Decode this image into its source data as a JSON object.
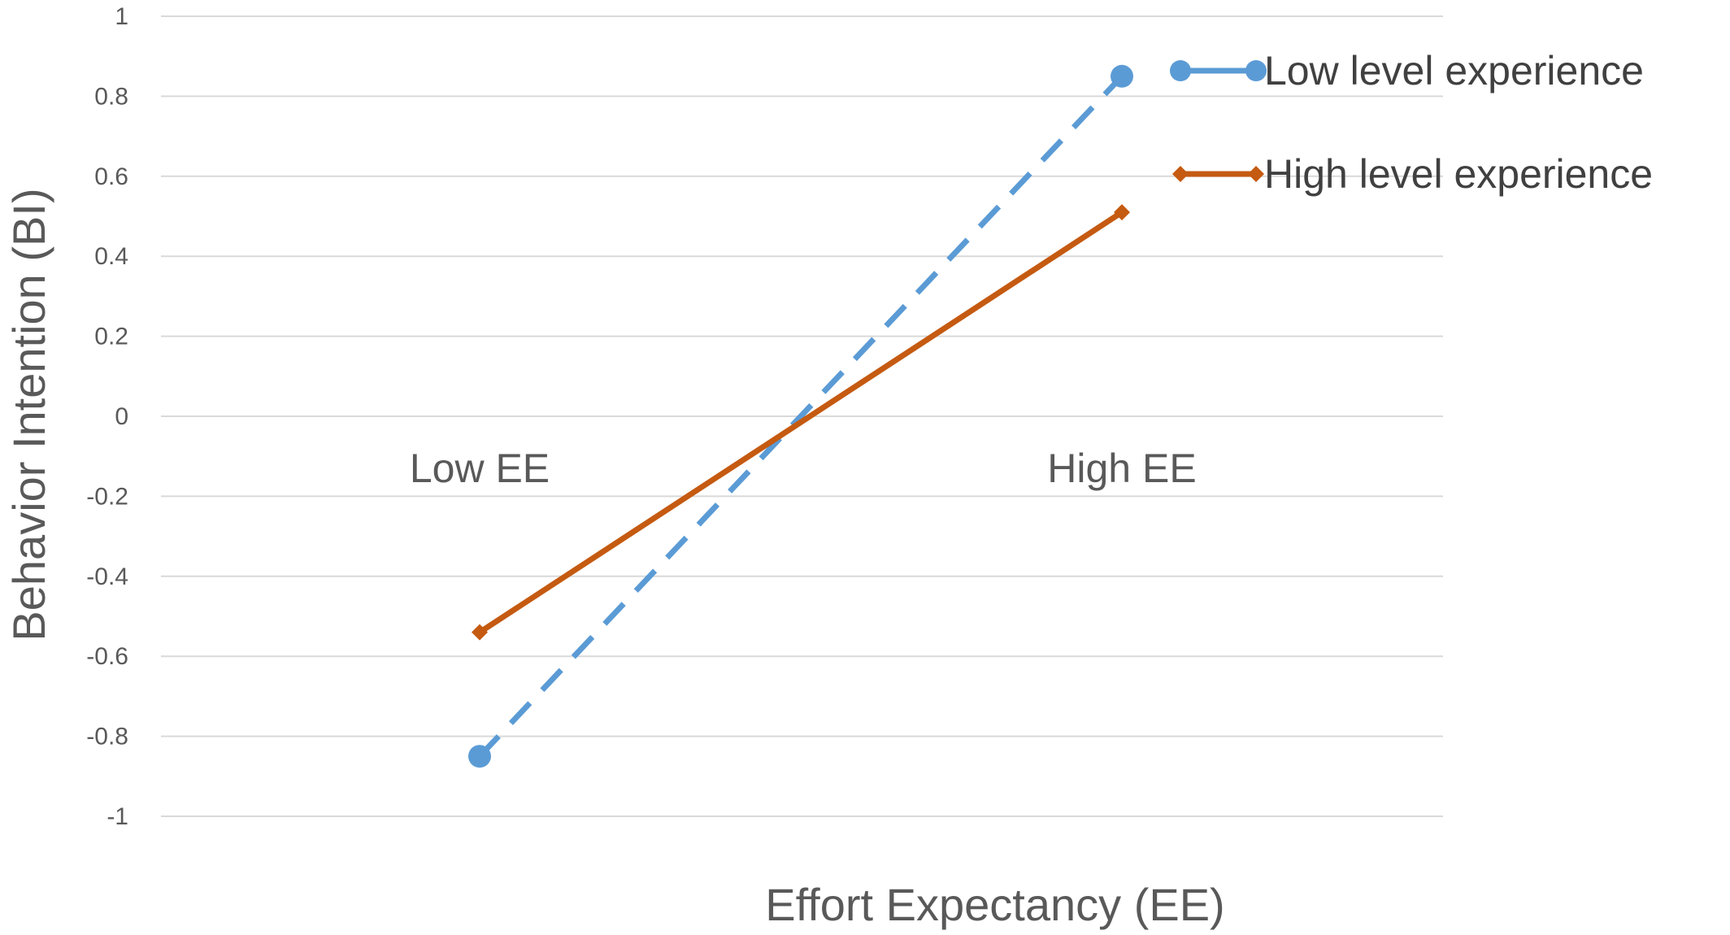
{
  "chart_data": {
    "type": "line",
    "xlabel": "Effort Expectancy (EE)",
    "ylabel": "Behavior Intention (BI)",
    "categories": [
      "Low EE",
      "High EE"
    ],
    "ylim": [
      -1,
      1
    ],
    "yticks": [
      "1",
      "0.8",
      "0.6",
      "0.4",
      "0.2",
      "0",
      "-0.2",
      "-0.4",
      "-0.6",
      "-0.8",
      "-1"
    ],
    "grid": true,
    "legend_position": "top-right",
    "series": [
      {
        "name": "Low level experience",
        "values": [
          -0.85,
          0.85
        ],
        "color": "#5B9BD5",
        "line_style": "dashed",
        "marker": "circle"
      },
      {
        "name": "High level experience",
        "values": [
          -0.54,
          0.51
        ],
        "color": "#C55A11",
        "line_style": "solid",
        "marker": "diamond"
      }
    ]
  }
}
